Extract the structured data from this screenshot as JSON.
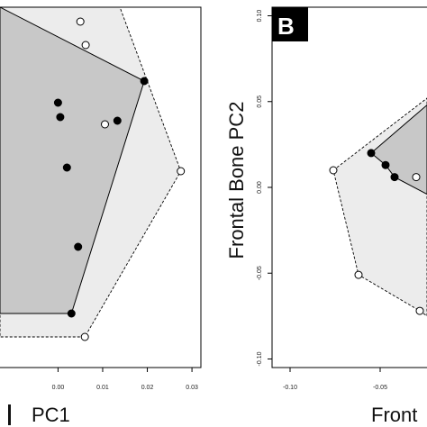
{
  "chart_data": [
    {
      "type": "scatter",
      "panel": "",
      "xlabel": "PC1",
      "ylabel": "",
      "xlim": [
        -0.013,
        0.032
      ],
      "ylim": [
        -0.095,
        0.105
      ],
      "x_ticks": [
        "0.00",
        "0.01",
        "0.02",
        "0.03"
      ],
      "x_tick_values": [
        0.0,
        0.01,
        0.02,
        0.03
      ],
      "hull_colors": {
        "dark": "#c8c8c8",
        "light": "#ececec"
      },
      "series": [
        {
          "marker": "filled",
          "points": [
            {
              "x": 0.0,
              "y": 0.052
            },
            {
              "x": 0.0005,
              "y": 0.044
            },
            {
              "x": 0.002,
              "y": 0.016
            },
            {
              "x": 0.0045,
              "y": -0.028
            },
            {
              "x": 0.0133,
              "y": 0.042
            },
            {
              "x": 0.0193,
              "y": 0.064
            },
            {
              "x": 0.003,
              "y": -0.065
            }
          ],
          "hull": [
            {
              "x": -0.013,
              "y": 0.105
            },
            {
              "x": 0.0193,
              "y": 0.064
            },
            {
              "x": 0.003,
              "y": -0.065
            },
            {
              "x": -0.013,
              "y": -0.065
            }
          ]
        },
        {
          "marker": "open",
          "points": [
            {
              "x": 0.005,
              "y": 0.097
            },
            {
              "x": 0.0062,
              "y": 0.084
            },
            {
              "x": 0.0105,
              "y": 0.04
            },
            {
              "x": 0.0128,
              "y": 0.112
            },
            {
              "x": 0.0275,
              "y": 0.014
            },
            {
              "x": 0.006,
              "y": -0.078
            }
          ],
          "hull": [
            {
              "x": -0.013,
              "y": 0.13
            },
            {
              "x": 0.0128,
              "y": 0.112
            },
            {
              "x": 0.0275,
              "y": 0.014
            },
            {
              "x": 0.006,
              "y": -0.078
            },
            {
              "x": -0.013,
              "y": -0.078
            }
          ]
        }
      ]
    },
    {
      "type": "scatter",
      "panel": "B",
      "xlabel": "Front",
      "ylabel": "Frontal Bone PC2",
      "xlim": [
        -0.11,
        -0.024
      ],
      "ylim": [
        -0.105,
        0.105
      ],
      "x_ticks": [
        "-0.10",
        "-0.05"
      ],
      "x_tick_values": [
        -0.1,
        -0.05
      ],
      "y_ticks": [
        "0.10",
        "0.05",
        "0.00",
        "-0.05",
        "-0.10"
      ],
      "y_tick_values": [
        0.1,
        0.05,
        0.0,
        -0.05,
        -0.1
      ],
      "series": [
        {
          "marker": "filled",
          "points": [
            {
              "x": -0.055,
              "y": 0.02
            },
            {
              "x": -0.047,
              "y": 0.013
            },
            {
              "x": -0.042,
              "y": 0.006
            }
          ],
          "hull": [
            {
              "x": -0.055,
              "y": 0.02
            },
            {
              "x": -0.024,
              "y": 0.048
            },
            {
              "x": -0.024,
              "y": -0.004
            },
            {
              "x": -0.042,
              "y": 0.006
            },
            {
              "x": -0.047,
              "y": 0.013
            }
          ]
        },
        {
          "marker": "open",
          "points": [
            {
              "x": -0.076,
              "y": 0.01
            },
            {
              "x": -0.062,
              "y": -0.051
            },
            {
              "x": -0.03,
              "y": 0.006
            },
            {
              "x": -0.028,
              "y": -0.072
            }
          ],
          "hull": [
            {
              "x": -0.076,
              "y": 0.01
            },
            {
              "x": -0.024,
              "y": 0.052
            },
            {
              "x": -0.024,
              "y": -0.075
            },
            {
              "x": -0.028,
              "y": -0.072
            },
            {
              "x": -0.062,
              "y": -0.051
            }
          ]
        }
      ]
    }
  ]
}
